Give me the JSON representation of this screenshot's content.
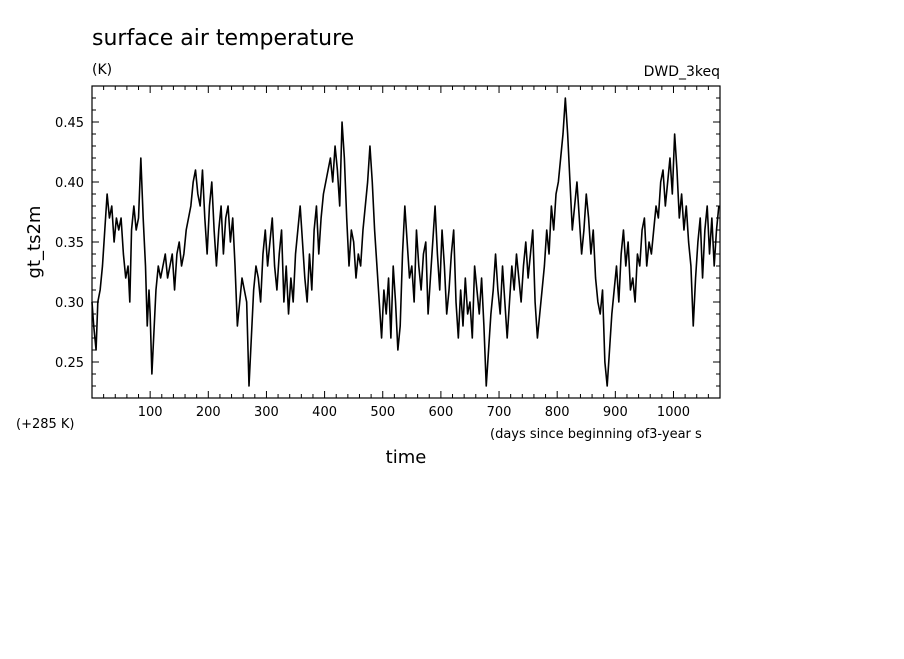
{
  "chart_data": {
    "type": "line",
    "title": "surface air temperature",
    "units": "(K)",
    "experiment": "DWD_3keq",
    "xlabel": "time",
    "xunits": "(days since beginning of3-year s",
    "ylabel": "gt_ts2m",
    "offset_note": "(+285 K)",
    "xlim": [
      0,
      1080
    ],
    "ylim": [
      0.22,
      0.48
    ],
    "x_ticks": [
      100,
      200,
      300,
      400,
      500,
      600,
      700,
      800,
      900,
      1000
    ],
    "x_tick_labels": [
      "100",
      "200",
      "300",
      "400",
      "500",
      "600",
      "700",
      "800",
      "900",
      "1000"
    ],
    "y_ticks": [
      0.25,
      0.3,
      0.35,
      0.4,
      0.45
    ],
    "y_tick_labels": [
      "0.25",
      "0.30",
      "0.35",
      "0.40",
      "0.45"
    ],
    "grid": false,
    "series": [
      {
        "color": "#000000",
        "points": [
          [
            0,
            0.3
          ],
          [
            3,
            0.28
          ],
          [
            7,
            0.26
          ],
          [
            10,
            0.3
          ],
          [
            14,
            0.31
          ],
          [
            18,
            0.33
          ],
          [
            22,
            0.36
          ],
          [
            26,
            0.39
          ],
          [
            30,
            0.37
          ],
          [
            34,
            0.38
          ],
          [
            38,
            0.35
          ],
          [
            42,
            0.37
          ],
          [
            46,
            0.36
          ],
          [
            50,
            0.37
          ],
          [
            54,
            0.34
          ],
          [
            58,
            0.32
          ],
          [
            62,
            0.33
          ],
          [
            65,
            0.3
          ],
          [
            68,
            0.36
          ],
          [
            72,
            0.38
          ],
          [
            76,
            0.36
          ],
          [
            80,
            0.37
          ],
          [
            84,
            0.42
          ],
          [
            88,
            0.37
          ],
          [
            92,
            0.33
          ],
          [
            95,
            0.28
          ],
          [
            98,
            0.31
          ],
          [
            100,
            0.29
          ],
          [
            103,
            0.24
          ],
          [
            106,
            0.27
          ],
          [
            110,
            0.31
          ],
          [
            114,
            0.33
          ],
          [
            118,
            0.32
          ],
          [
            122,
            0.33
          ],
          [
            126,
            0.34
          ],
          [
            130,
            0.32
          ],
          [
            134,
            0.33
          ],
          [
            138,
            0.34
          ],
          [
            142,
            0.31
          ],
          [
            146,
            0.34
          ],
          [
            150,
            0.35
          ],
          [
            154,
            0.33
          ],
          [
            158,
            0.34
          ],
          [
            162,
            0.36
          ],
          [
            166,
            0.37
          ],
          [
            170,
            0.38
          ],
          [
            174,
            0.4
          ],
          [
            178,
            0.41
          ],
          [
            182,
            0.39
          ],
          [
            186,
            0.38
          ],
          [
            190,
            0.41
          ],
          [
            194,
            0.37
          ],
          [
            198,
            0.34
          ],
          [
            202,
            0.38
          ],
          [
            206,
            0.4
          ],
          [
            210,
            0.36
          ],
          [
            214,
            0.33
          ],
          [
            218,
            0.36
          ],
          [
            222,
            0.38
          ],
          [
            226,
            0.34
          ],
          [
            230,
            0.37
          ],
          [
            234,
            0.38
          ],
          [
            238,
            0.35
          ],
          [
            242,
            0.37
          ],
          [
            246,
            0.33
          ],
          [
            250,
            0.28
          ],
          [
            254,
            0.3
          ],
          [
            258,
            0.32
          ],
          [
            262,
            0.31
          ],
          [
            266,
            0.3
          ],
          [
            270,
            0.23
          ],
          [
            274,
            0.27
          ],
          [
            278,
            0.31
          ],
          [
            282,
            0.33
          ],
          [
            286,
            0.32
          ],
          [
            290,
            0.3
          ],
          [
            294,
            0.34
          ],
          [
            298,
            0.36
          ],
          [
            302,
            0.33
          ],
          [
            306,
            0.35
          ],
          [
            310,
            0.37
          ],
          [
            314,
            0.33
          ],
          [
            318,
            0.31
          ],
          [
            322,
            0.34
          ],
          [
            326,
            0.36
          ],
          [
            330,
            0.3
          ],
          [
            334,
            0.33
          ],
          [
            338,
            0.29
          ],
          [
            342,
            0.32
          ],
          [
            346,
            0.3
          ],
          [
            350,
            0.34
          ],
          [
            354,
            0.36
          ],
          [
            358,
            0.38
          ],
          [
            362,
            0.35
          ],
          [
            366,
            0.32
          ],
          [
            370,
            0.3
          ],
          [
            374,
            0.34
          ],
          [
            378,
            0.31
          ],
          [
            382,
            0.36
          ],
          [
            386,
            0.38
          ],
          [
            390,
            0.34
          ],
          [
            394,
            0.37
          ],
          [
            398,
            0.39
          ],
          [
            402,
            0.4
          ],
          [
            406,
            0.41
          ],
          [
            410,
            0.42
          ],
          [
            414,
            0.4
          ],
          [
            418,
            0.43
          ],
          [
            422,
            0.41
          ],
          [
            426,
            0.38
          ],
          [
            430,
            0.45
          ],
          [
            434,
            0.42
          ],
          [
            438,
            0.37
          ],
          [
            442,
            0.33
          ],
          [
            446,
            0.36
          ],
          [
            450,
            0.35
          ],
          [
            454,
            0.32
          ],
          [
            458,
            0.34
          ],
          [
            462,
            0.33
          ],
          [
            466,
            0.36
          ],
          [
            470,
            0.38
          ],
          [
            474,
            0.4
          ],
          [
            478,
            0.43
          ],
          [
            482,
            0.4
          ],
          [
            486,
            0.36
          ],
          [
            490,
            0.33
          ],
          [
            494,
            0.3
          ],
          [
            498,
            0.27
          ],
          [
            502,
            0.31
          ],
          [
            506,
            0.29
          ],
          [
            510,
            0.32
          ],
          [
            514,
            0.27
          ],
          [
            518,
            0.33
          ],
          [
            522,
            0.3
          ],
          [
            526,
            0.26
          ],
          [
            530,
            0.28
          ],
          [
            534,
            0.34
          ],
          [
            538,
            0.38
          ],
          [
            542,
            0.35
          ],
          [
            546,
            0.32
          ],
          [
            550,
            0.33
          ],
          [
            554,
            0.3
          ],
          [
            558,
            0.36
          ],
          [
            562,
            0.33
          ],
          [
            566,
            0.31
          ],
          [
            570,
            0.34
          ],
          [
            574,
            0.35
          ],
          [
            578,
            0.29
          ],
          [
            582,
            0.32
          ],
          [
            586,
            0.35
          ],
          [
            590,
            0.38
          ],
          [
            594,
            0.34
          ],
          [
            598,
            0.31
          ],
          [
            602,
            0.36
          ],
          [
            606,
            0.33
          ],
          [
            610,
            0.29
          ],
          [
            614,
            0.31
          ],
          [
            618,
            0.34
          ],
          [
            622,
            0.36
          ],
          [
            626,
            0.3
          ],
          [
            630,
            0.27
          ],
          [
            634,
            0.31
          ],
          [
            638,
            0.28
          ],
          [
            642,
            0.32
          ],
          [
            646,
            0.29
          ],
          [
            650,
            0.3
          ],
          [
            654,
            0.27
          ],
          [
            658,
            0.33
          ],
          [
            662,
            0.31
          ],
          [
            666,
            0.29
          ],
          [
            670,
            0.32
          ],
          [
            674,
            0.28
          ],
          [
            678,
            0.23
          ],
          [
            682,
            0.26
          ],
          [
            686,
            0.29
          ],
          [
            690,
            0.31
          ],
          [
            694,
            0.34
          ],
          [
            698,
            0.31
          ],
          [
            702,
            0.29
          ],
          [
            706,
            0.33
          ],
          [
            710,
            0.3
          ],
          [
            714,
            0.27
          ],
          [
            718,
            0.3
          ],
          [
            722,
            0.33
          ],
          [
            726,
            0.31
          ],
          [
            730,
            0.34
          ],
          [
            734,
            0.32
          ],
          [
            738,
            0.3
          ],
          [
            742,
            0.33
          ],
          [
            746,
            0.35
          ],
          [
            750,
            0.32
          ],
          [
            754,
            0.34
          ],
          [
            758,
            0.36
          ],
          [
            762,
            0.3
          ],
          [
            766,
            0.27
          ],
          [
            770,
            0.29
          ],
          [
            774,
            0.31
          ],
          [
            778,
            0.33
          ],
          [
            782,
            0.36
          ],
          [
            786,
            0.34
          ],
          [
            790,
            0.38
          ],
          [
            794,
            0.36
          ],
          [
            798,
            0.39
          ],
          [
            802,
            0.4
          ],
          [
            806,
            0.42
          ],
          [
            810,
            0.44
          ],
          [
            814,
            0.47
          ],
          [
            818,
            0.44
          ],
          [
            822,
            0.4
          ],
          [
            826,
            0.36
          ],
          [
            830,
            0.38
          ],
          [
            834,
            0.4
          ],
          [
            838,
            0.37
          ],
          [
            842,
            0.34
          ],
          [
            846,
            0.36
          ],
          [
            850,
            0.39
          ],
          [
            854,
            0.37
          ],
          [
            858,
            0.34
          ],
          [
            862,
            0.36
          ],
          [
            866,
            0.32
          ],
          [
            870,
            0.3
          ],
          [
            874,
            0.29
          ],
          [
            878,
            0.31
          ],
          [
            882,
            0.25
          ],
          [
            886,
            0.23
          ],
          [
            890,
            0.26
          ],
          [
            894,
            0.29
          ],
          [
            898,
            0.31
          ],
          [
            902,
            0.33
          ],
          [
            906,
            0.3
          ],
          [
            910,
            0.34
          ],
          [
            914,
            0.36
          ],
          [
            918,
            0.33
          ],
          [
            922,
            0.35
          ],
          [
            926,
            0.31
          ],
          [
            930,
            0.32
          ],
          [
            934,
            0.3
          ],
          [
            938,
            0.34
          ],
          [
            942,
            0.33
          ],
          [
            946,
            0.36
          ],
          [
            950,
            0.37
          ],
          [
            954,
            0.33
          ],
          [
            958,
            0.35
          ],
          [
            962,
            0.34
          ],
          [
            966,
            0.36
          ],
          [
            970,
            0.38
          ],
          [
            974,
            0.37
          ],
          [
            978,
            0.4
          ],
          [
            982,
            0.41
          ],
          [
            986,
            0.38
          ],
          [
            990,
            0.4
          ],
          [
            994,
            0.42
          ],
          [
            998,
            0.39
          ],
          [
            1002,
            0.44
          ],
          [
            1006,
            0.41
          ],
          [
            1010,
            0.37
          ],
          [
            1014,
            0.39
          ],
          [
            1018,
            0.36
          ],
          [
            1022,
            0.38
          ],
          [
            1026,
            0.35
          ],
          [
            1030,
            0.33
          ],
          [
            1034,
            0.28
          ],
          [
            1038,
            0.32
          ],
          [
            1042,
            0.35
          ],
          [
            1046,
            0.37
          ],
          [
            1050,
            0.32
          ],
          [
            1054,
            0.36
          ],
          [
            1058,
            0.38
          ],
          [
            1062,
            0.34
          ],
          [
            1066,
            0.37
          ],
          [
            1070,
            0.33
          ],
          [
            1074,
            0.36
          ],
          [
            1078,
            0.38
          ]
        ]
      }
    ]
  }
}
